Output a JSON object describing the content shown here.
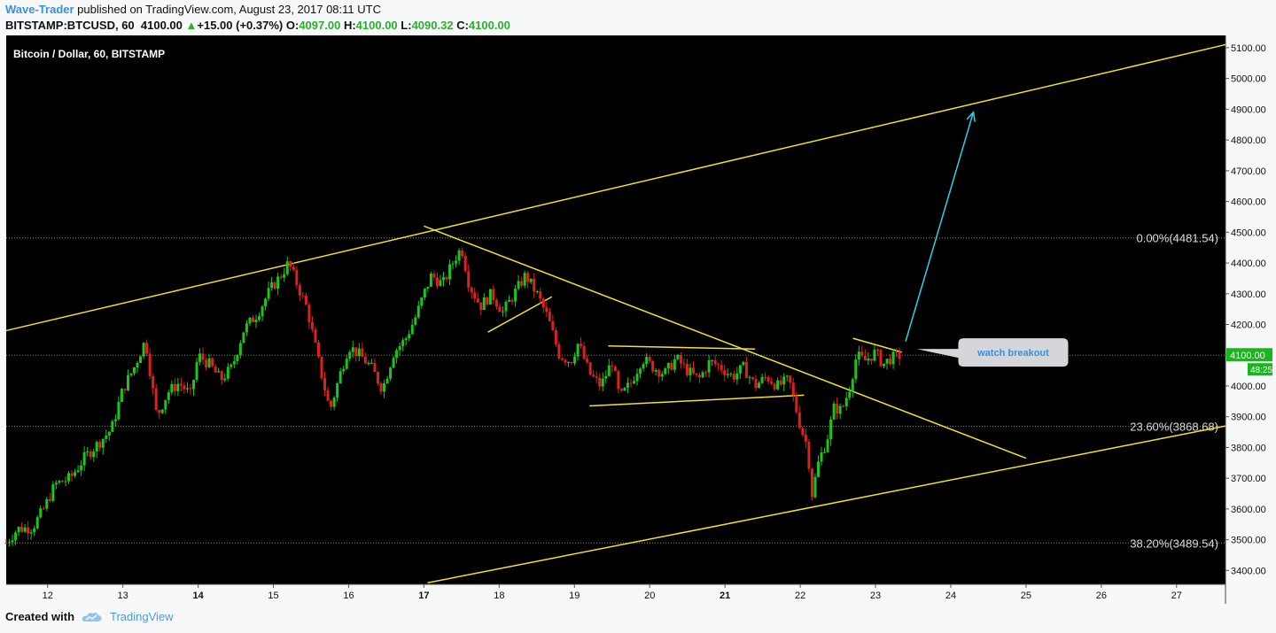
{
  "header": {
    "author": "Wave-Trader",
    "published": " published on TradingView.com, August 23, 2017 08:11 UTC",
    "symbol": "BITSTAMP:BTCUSD, 60",
    "last": "4100.00",
    "change": "+15.00 (+0.37%)",
    "o_label": "O:",
    "o": "4097.00",
    "h_label": "H:",
    "h": "4100.00",
    "l_label": "L:",
    "l": "4090.32",
    "c_label": "C:",
    "c": "4100.00"
  },
  "footer": {
    "created_with": "Created with",
    "brand": "TradingView"
  },
  "colors": {
    "up": "#19c619",
    "down": "#e01f1f",
    "trendline": "#f2e323",
    "arrow": "#2bd3e8",
    "background": "#000000"
  },
  "chart_data": {
    "type": "candlestick",
    "title": "Bitcoin / Dollar, 60, BITSTAMP",
    "x_ticks": [
      "12",
      "13",
      "14",
      "15",
      "16",
      "17",
      "18",
      "19",
      "20",
      "21",
      "22",
      "23",
      "24",
      "25",
      "26",
      "27"
    ],
    "x_tick_values": [
      12,
      13,
      14,
      15,
      16,
      17,
      18,
      19,
      20,
      21,
      22,
      23,
      24,
      25,
      26,
      27
    ],
    "bold_ticks": [
      "14",
      "17",
      "21"
    ],
    "y_ticks": [
      "3400.00",
      "3500.00",
      "3600.00",
      "3700.00",
      "3800.00",
      "3900.00",
      "4000.00",
      "4100.00",
      "4200.00",
      "4300.00",
      "4400.00",
      "4500.00",
      "4600.00",
      "4700.00",
      "4800.00",
      "4900.00",
      "5000.00",
      "5100.00"
    ],
    "y_tick_values": [
      3400,
      3500,
      3600,
      3700,
      3800,
      3900,
      4000,
      4100,
      4200,
      4300,
      4400,
      4500,
      4600,
      4700,
      4800,
      4900,
      5000,
      5100
    ],
    "xlim": [
      11.45,
      27.65
    ],
    "ylim": [
      3355,
      5140
    ],
    "price_label": "4100.00",
    "price_value": 4100,
    "countdown": "48:25",
    "fib_levels": [
      {
        "label": "0.00%(4481.54)",
        "value": 4481.54
      },
      {
        "label": "23.60%(3868.68)",
        "value": 3868.68
      },
      {
        "label": "38.20%(3489.54)",
        "value": 3489.54
      }
    ],
    "price_path": [
      [
        11.45,
        3490
      ],
      [
        11.6,
        3535
      ],
      [
        11.8,
        3540
      ],
      [
        11.95,
        3600
      ],
      [
        12.1,
        3680
      ],
      [
        12.3,
        3700
      ],
      [
        12.5,
        3770
      ],
      [
        12.7,
        3820
      ],
      [
        12.85,
        3860
      ],
      [
        13.0,
        3990
      ],
      [
        13.15,
        4060
      ],
      [
        13.3,
        4150
      ],
      [
        13.45,
        3900
      ],
      [
        13.6,
        3980
      ],
      [
        13.75,
        4010
      ],
      [
        13.9,
        3970
      ],
      [
        14.0,
        4100
      ],
      [
        14.15,
        4070
      ],
      [
        14.3,
        4020
      ],
      [
        14.45,
        4060
      ],
      [
        14.6,
        4180
      ],
      [
        14.8,
        4240
      ],
      [
        14.95,
        4310
      ],
      [
        15.1,
        4360
      ],
      [
        15.2,
        4400
      ],
      [
        15.3,
        4340
      ],
      [
        15.45,
        4250
      ],
      [
        15.6,
        4080
      ],
      [
        15.75,
        3920
      ],
      [
        15.9,
        4050
      ],
      [
        16.0,
        4130
      ],
      [
        16.15,
        4100
      ],
      [
        16.3,
        4060
      ],
      [
        16.45,
        3990
      ],
      [
        16.6,
        4110
      ],
      [
        16.75,
        4150
      ],
      [
        16.9,
        4230
      ],
      [
        17.0,
        4300
      ],
      [
        17.1,
        4360
      ],
      [
        17.25,
        4330
      ],
      [
        17.4,
        4410
      ],
      [
        17.5,
        4450
      ],
      [
        17.6,
        4330
      ],
      [
        17.75,
        4260
      ],
      [
        17.9,
        4300
      ],
      [
        18.05,
        4240
      ],
      [
        18.2,
        4300
      ],
      [
        18.35,
        4360
      ],
      [
        18.5,
        4300
      ],
      [
        18.65,
        4220
      ],
      [
        18.8,
        4100
      ],
      [
        18.95,
        4080
      ],
      [
        19.05,
        4140
      ],
      [
        19.2,
        4040
      ],
      [
        19.35,
        4000
      ],
      [
        19.5,
        4080
      ],
      [
        19.6,
        3960
      ],
      [
        19.75,
        4010
      ],
      [
        19.9,
        4090
      ],
      [
        20.05,
        4060
      ],
      [
        20.2,
        4040
      ],
      [
        20.35,
        4090
      ],
      [
        20.5,
        4050
      ],
      [
        20.65,
        4020
      ],
      [
        20.8,
        4080
      ],
      [
        20.95,
        4060
      ],
      [
        21.1,
        4030
      ],
      [
        21.25,
        4060
      ],
      [
        21.4,
        4000
      ],
      [
        21.55,
        4030
      ],
      [
        21.7,
        4000
      ],
      [
        21.85,
        4020
      ],
      [
        22.0,
        3870
      ],
      [
        22.1,
        3800
      ],
      [
        22.15,
        3640
      ],
      [
        22.25,
        3760
      ],
      [
        22.35,
        3820
      ],
      [
        22.45,
        3930
      ],
      [
        22.55,
        3920
      ],
      [
        22.65,
        3990
      ],
      [
        22.75,
        4100
      ],
      [
        22.85,
        4080
      ],
      [
        23.0,
        4110
      ],
      [
        23.1,
        4070
      ],
      [
        23.2,
        4090
      ],
      [
        23.35,
        4100
      ]
    ],
    "trendlines": [
      {
        "name": "upper-channel",
        "points": [
          [
            11.45,
            4180
          ],
          [
            27.65,
            5110
          ]
        ]
      },
      {
        "name": "lower-channel",
        "points": [
          [
            17.05,
            3360
          ],
          [
            27.65,
            3870
          ]
        ]
      },
      {
        "name": "descending",
        "points": [
          [
            17.0,
            4520
          ],
          [
            25.0,
            3765
          ]
        ]
      },
      {
        "name": "mini-rising",
        "points": [
          [
            17.85,
            4175
          ],
          [
            18.7,
            4290
          ]
        ]
      },
      {
        "name": "triangle-top",
        "points": [
          [
            19.45,
            4130
          ],
          [
            21.4,
            4120
          ]
        ]
      },
      {
        "name": "triangle-bottom",
        "points": [
          [
            19.2,
            3935
          ],
          [
            22.05,
            3970
          ]
        ]
      },
      {
        "name": "flag",
        "points": [
          [
            22.7,
            4155
          ],
          [
            23.35,
            4110
          ]
        ]
      }
    ],
    "projection_arrow": {
      "from": [
        23.4,
        4145
      ],
      "to": [
        24.3,
        4890
      ]
    },
    "callout": {
      "text": "watch breakout",
      "anchor": [
        23.55,
        4120
      ],
      "box_x": 24.1,
      "box_y": 4155
    }
  }
}
